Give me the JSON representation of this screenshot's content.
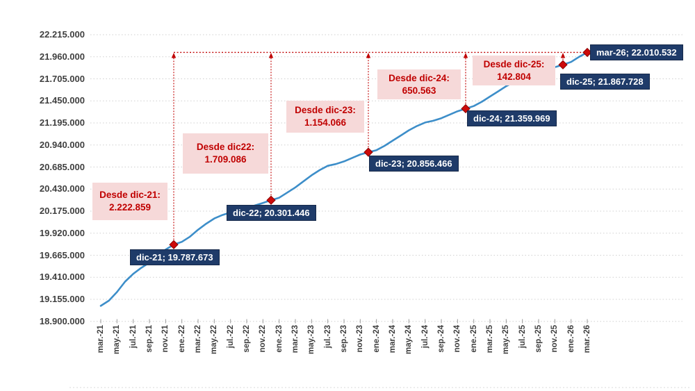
{
  "colors": {
    "line": "#3d8ec9",
    "marker_red": "#c00000",
    "point_label_bg": "#1f3b69",
    "point_label_text": "#ffffff",
    "annotation_bg": "#f6d9d9",
    "annotation_text": "#c00000",
    "grid": "#cfcfcf",
    "axis_text": "#3f3f3f"
  },
  "chart_data": {
    "type": "line",
    "title": "",
    "frequency": "monthly",
    "x_start": "mar-21",
    "x_end": "mar-26",
    "grid": "dotted-horizontal",
    "y_axis": {
      "min": 18900000,
      "max": 22215000,
      "step": 255000,
      "ticks": [
        "22.215.000",
        "21.960.000",
        "21.705.000",
        "21.450.000",
        "21.195.000",
        "20.940.000",
        "20.685.000",
        "20.430.000",
        "20.175.000",
        "19.920.000",
        "19.665.000",
        "19.410.000",
        "19.155.000",
        "18.900.000"
      ]
    },
    "x_axis": {
      "ticks": [
        "mar.-21",
        "may.-21",
        "jul.-21",
        "sep.-21",
        "nov.-21",
        "ene.-22",
        "mar.-22",
        "may.-22",
        "jul.-22",
        "sep.-22",
        "nov.-22",
        "ene.-23",
        "mar.-23",
        "may.-23",
        "jul.-23",
        "sep.-23",
        "nov.-23",
        "ene.-24",
        "mar.-24",
        "may.-24",
        "jul.-24",
        "sep.-24",
        "nov.-24",
        "ene.-25",
        "mar.-25",
        "may.-25",
        "jul.-25",
        "sep.-25",
        "nov.-25",
        "ene.-26",
        "mar.-26"
      ]
    },
    "series": [
      {
        "name": "serie-afiliacion",
        "color": "#3d8ec9",
        "monthly_values": [
          19080000,
          19140000,
          19240000,
          19360000,
          19450000,
          19520000,
          19580000,
          19660000,
          19730000,
          19787673,
          19820000,
          19880000,
          19960000,
          20030000,
          20090000,
          20130000,
          20160000,
          20180000,
          20210000,
          20240000,
          20270000,
          20301446,
          20330000,
          20390000,
          20450000,
          20520000,
          20590000,
          20650000,
          20700000,
          20720000,
          20750000,
          20790000,
          20830000,
          20856466,
          20880000,
          20930000,
          20990000,
          21050000,
          21110000,
          21160000,
          21200000,
          21220000,
          21250000,
          21290000,
          21330000,
          21359969,
          21390000,
          21440000,
          21500000,
          21560000,
          21620000,
          21670000,
          21710000,
          21730000,
          21760000,
          21800000,
          21840000,
          21867728,
          21900000,
          21960000,
          22010532
        ]
      }
    ],
    "labeled_points": [
      {
        "label": "dic-21; 19.787.673",
        "x": "dic-21",
        "value": 19787673,
        "month_index": 9
      },
      {
        "label": "dic-22; 20.301.446",
        "x": "dic-22",
        "value": 20301446,
        "month_index": 21
      },
      {
        "label": "dic-23; 20.856.466",
        "x": "dic-23",
        "value": 20856466,
        "month_index": 33
      },
      {
        "label": "dic-24; 21.359.969",
        "x": "dic-24",
        "value": 21359969,
        "month_index": 45
      },
      {
        "label": "dic-25; 21.867.728",
        "x": "dic-25",
        "value": 21867728,
        "month_index": 57
      },
      {
        "label": "mar-26; 22.010.532",
        "x": "mar-26",
        "value": 22010532,
        "month_index": 60
      }
    ],
    "annotations": [
      {
        "line1": "Desde dic-21:",
        "line2": "2.222.859"
      },
      {
        "line1": "Desde dic22:",
        "line2": "1.709.086"
      },
      {
        "line1": "Desde dic-23:",
        "line2": "1.154.066"
      },
      {
        "line1": "Desde dic-24:",
        "line2": "650.563"
      },
      {
        "line1": "Desde dic-25:",
        "line2": "142.804"
      }
    ]
  }
}
